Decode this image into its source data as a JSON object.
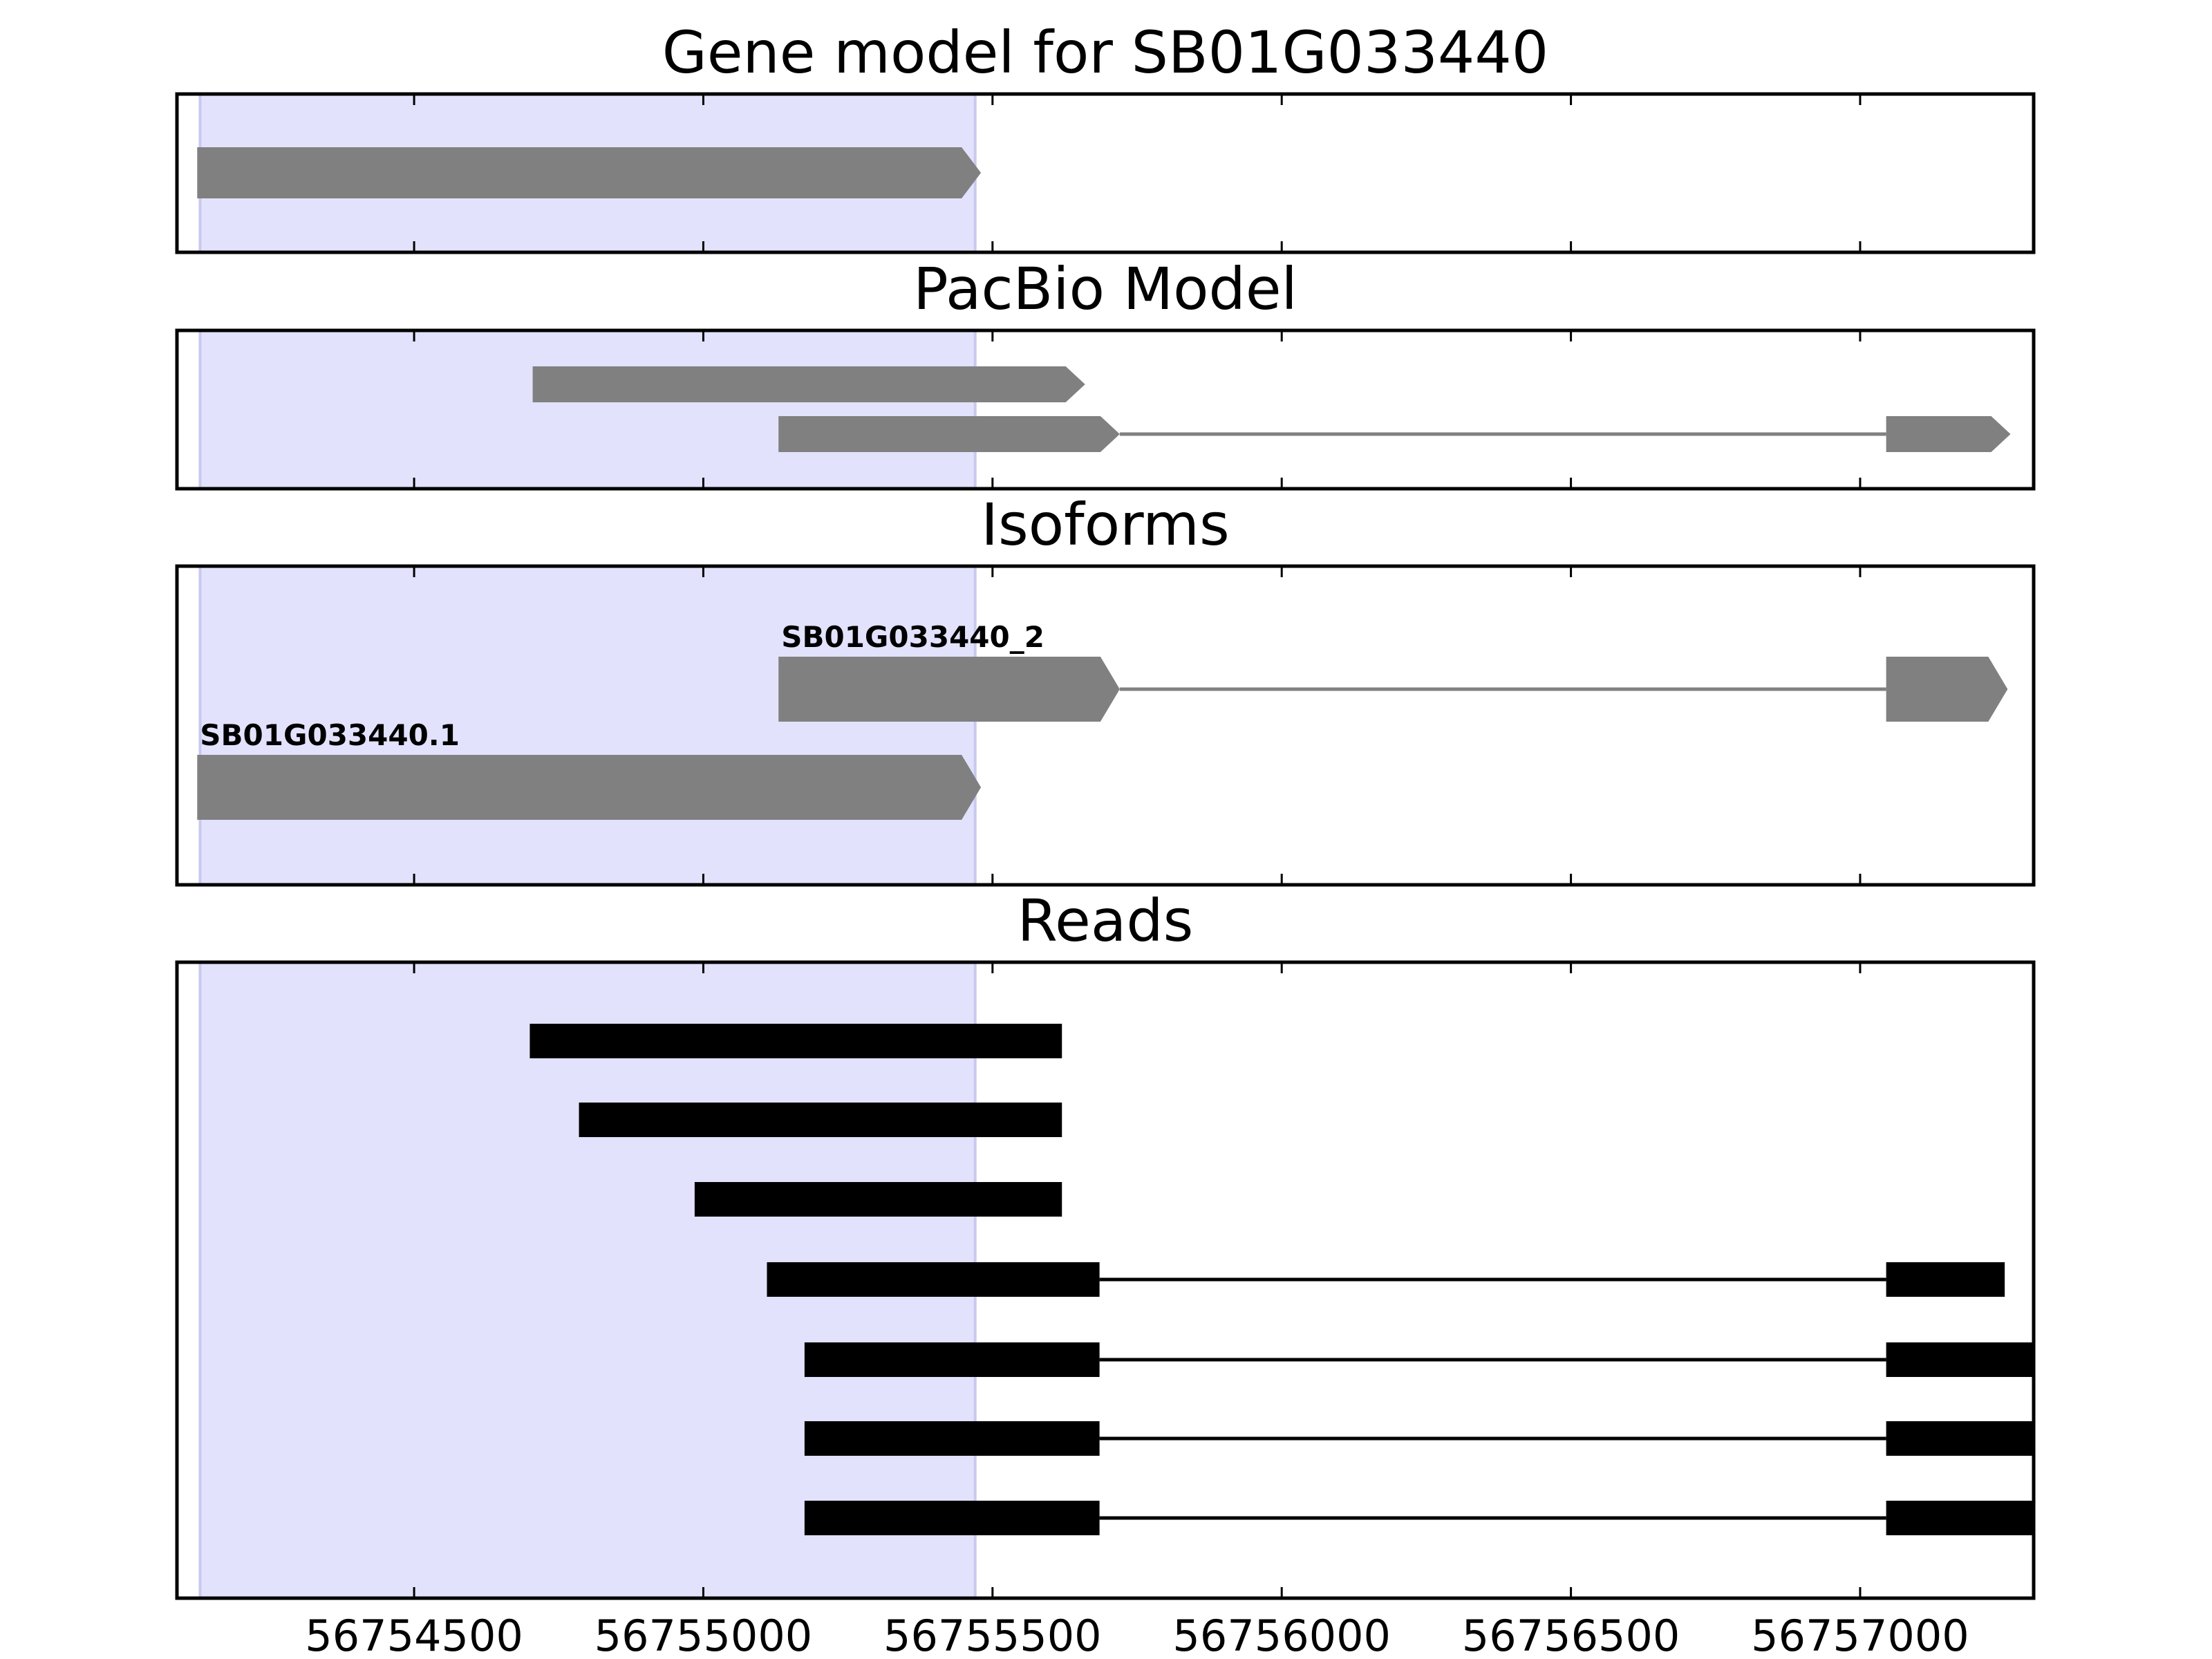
{
  "colors": {
    "highlight": "#e2e2fd",
    "gene_feature": "#808080",
    "read_feature": "#000000",
    "frame": "#000000"
  },
  "chart_data": {
    "type": "gene-track",
    "xlim": [
      56754090,
      56757300
    ],
    "x_ticks": [
      56754500,
      56755000,
      56755500,
      56756000,
      56756500,
      56757000
    ],
    "x_tick_labels": [
      "56754500",
      "56755000",
      "56755500",
      "56756000",
      "56756500",
      "56757000"
    ],
    "highlight_region": [
      56754130,
      56755470
    ],
    "panels": [
      {
        "id": "gene-model",
        "title": "Gene model for SB01G033440",
        "style": "arrow",
        "rows": 1,
        "features": [
          {
            "row": 0,
            "label": "",
            "exons": [
              [
                56754125,
                56755480
              ]
            ]
          }
        ]
      },
      {
        "id": "pacbio-model",
        "title": "PacBio Model",
        "style": "arrow",
        "rows": 2,
        "features": [
          {
            "row": 0,
            "label": "",
            "exons": [
              [
                56754705,
                56755660
              ]
            ]
          },
          {
            "row": 1,
            "label": "",
            "exons": [
              [
                56755130,
                56755720
              ],
              [
                56757045,
                56757260
              ]
            ]
          }
        ]
      },
      {
        "id": "isoforms",
        "title": "Isoforms",
        "style": "arrow",
        "rows": 2,
        "features": [
          {
            "row": 0,
            "label": "SB01G033440_2",
            "exons": [
              [
                56755130,
                56755720
              ],
              [
                56757045,
                56757255
              ]
            ]
          },
          {
            "row": 1,
            "label": "SB01G033440.1",
            "exons": [
              [
                56754125,
                56755480
              ]
            ]
          }
        ]
      },
      {
        "id": "reads",
        "title": "Reads",
        "style": "block",
        "rows": 7,
        "features": [
          {
            "row": 0,
            "label": "",
            "exons": [
              [
                56754700,
                56755620
              ]
            ]
          },
          {
            "row": 1,
            "label": "",
            "exons": [
              [
                56754785,
                56755620
              ]
            ]
          },
          {
            "row": 2,
            "label": "",
            "exons": [
              [
                56754985,
                56755620
              ]
            ]
          },
          {
            "row": 3,
            "label": "",
            "exons": [
              [
                56755110,
                56755685
              ],
              [
                56757045,
                56757250
              ]
            ]
          },
          {
            "row": 4,
            "label": "",
            "exons": [
              [
                56755175,
                56755685
              ],
              [
                56757045,
                56757300
              ]
            ]
          },
          {
            "row": 5,
            "label": "",
            "exons": [
              [
                56755175,
                56755685
              ],
              [
                56757045,
                56757300
              ]
            ]
          },
          {
            "row": 6,
            "label": "",
            "exons": [
              [
                56755175,
                56755685
              ],
              [
                56757045,
                56757300
              ]
            ]
          }
        ]
      }
    ]
  }
}
